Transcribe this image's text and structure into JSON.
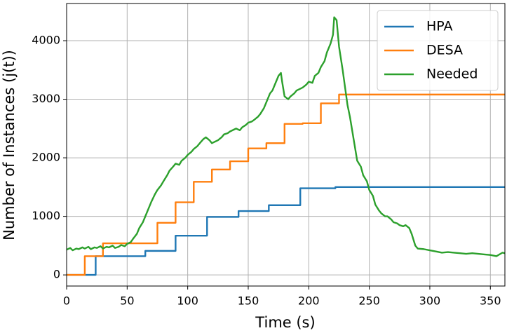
{
  "chart_data": {
    "type": "line",
    "xlabel": "Time (s)",
    "ylabel": "Number of Instances (j(t))",
    "xlim": [
      0,
      362
    ],
    "ylim": [
      -190,
      4635
    ],
    "xticks": [
      0,
      50,
      100,
      150,
      200,
      250,
      300,
      350
    ],
    "yticks": [
      0,
      1000,
      2000,
      3000,
      4000
    ],
    "grid": true,
    "legend": "upper right",
    "series": [
      {
        "name": "HPA",
        "color": "#1f77b4",
        "x": [
          0,
          24,
          24,
          65,
          65,
          90,
          90,
          116,
          116,
          142,
          142,
          167,
          167,
          193,
          193,
          222,
          222,
          362
        ],
        "values": [
          0,
          0,
          320,
          320,
          410,
          410,
          670,
          670,
          990,
          990,
          1090,
          1090,
          1190,
          1190,
          1480,
          1480,
          1500,
          1500
        ]
      },
      {
        "name": "DESA",
        "color": "#ff7f0e",
        "x": [
          0,
          15,
          15,
          30,
          30,
          75,
          75,
          90,
          90,
          105,
          105,
          120,
          120,
          135,
          135,
          150,
          150,
          165,
          165,
          180,
          180,
          195,
          195,
          210,
          210,
          225,
          225,
          362
        ],
        "values": [
          0,
          0,
          320,
          320,
          540,
          540,
          890,
          890,
          1240,
          1240,
          1590,
          1590,
          1800,
          1800,
          1940,
          1940,
          2160,
          2160,
          2250,
          2250,
          2580,
          2580,
          2590,
          2590,
          2930,
          2930,
          3080,
          3080
        ]
      },
      {
        "name": "Needed",
        "color": "#2ca02c",
        "x": [
          0,
          3,
          5,
          8,
          10,
          13,
          15,
          18,
          20,
          23,
          25,
          28,
          30,
          33,
          35,
          38,
          40,
          43,
          45,
          48,
          50,
          53,
          55,
          58,
          60,
          63,
          65,
          68,
          70,
          73,
          75,
          78,
          80,
          83,
          85,
          88,
          90,
          93,
          95,
          98,
          100,
          103,
          105,
          108,
          110,
          113,
          115,
          118,
          120,
          123,
          125,
          128,
          130,
          133,
          135,
          138,
          140,
          143,
          145,
          148,
          150,
          153,
          155,
          158,
          160,
          163,
          165,
          168,
          170,
          173,
          175,
          177,
          178,
          180,
          183,
          185,
          188,
          190,
          193,
          195,
          198,
          200,
          203,
          205,
          208,
          210,
          213,
          215,
          218,
          220,
          221,
          223,
          225,
          228,
          230,
          232,
          234,
          236,
          238,
          240,
          243,
          245,
          248,
          250,
          253,
          255,
          258,
          260,
          263,
          265,
          268,
          270,
          273,
          275,
          278,
          280,
          283,
          285,
          288,
          290,
          295,
          300,
          305,
          310,
          315,
          320,
          325,
          330,
          335,
          340,
          345,
          350,
          355,
          360,
          362
        ],
        "values": [
          430,
          460,
          420,
          450,
          440,
          470,
          450,
          480,
          440,
          470,
          460,
          490,
          450,
          480,
          470,
          500,
          460,
          480,
          510,
          490,
          530,
          560,
          620,
          700,
          800,
          900,
          1000,
          1150,
          1250,
          1380,
          1450,
          1530,
          1600,
          1700,
          1780,
          1850,
          1900,
          1880,
          1950,
          2000,
          2050,
          2100,
          2150,
          2200,
          2250,
          2320,
          2350,
          2300,
          2250,
          2280,
          2300,
          2350,
          2400,
          2420,
          2450,
          2480,
          2500,
          2470,
          2520,
          2560,
          2600,
          2620,
          2650,
          2700,
          2750,
          2850,
          2950,
          3100,
          3150,
          3300,
          3400,
          3450,
          3300,
          3050,
          3000,
          3050,
          3100,
          3150,
          3180,
          3200,
          3250,
          3300,
          3280,
          3400,
          3450,
          3550,
          3650,
          3800,
          3950,
          4100,
          4400,
          4350,
          3900,
          3500,
          3200,
          2900,
          2700,
          2450,
          2200,
          1950,
          1850,
          1700,
          1600,
          1450,
          1350,
          1200,
          1100,
          1050,
          1000,
          1000,
          950,
          900,
          880,
          850,
          830,
          850,
          800,
          700,
          500,
          450,
          440,
          420,
          400,
          380,
          390,
          380,
          370,
          360,
          370,
          360,
          350,
          340,
          320,
          380,
          370
        ]
      }
    ]
  }
}
